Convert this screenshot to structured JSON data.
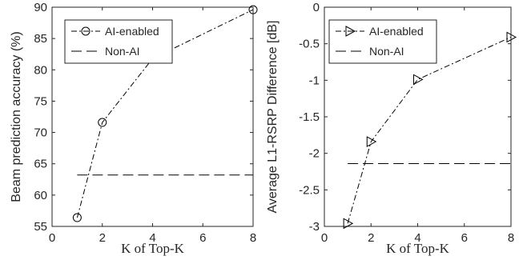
{
  "chart_data": [
    {
      "type": "line",
      "xlabel": "K of Top-K",
      "ylabel": "Beam prediction accuracy (%)",
      "xlim": [
        0,
        8
      ],
      "ylim": [
        55,
        90
      ],
      "xticks": [
        0,
        2,
        4,
        6,
        8
      ],
      "yticks": [
        55,
        60,
        65,
        70,
        75,
        80,
        85,
        90
      ],
      "xtick_labels": [
        "0",
        "2",
        "4",
        "6",
        "8"
      ],
      "ytick_labels": [
        "55",
        "60",
        "65",
        "70",
        "75",
        "80",
        "85",
        "90"
      ],
      "legend_position": "top-left",
      "series": [
        {
          "name": "AI-enabled",
          "style": "dash-dot",
          "marker": "circle",
          "x": [
            1,
            2,
            4,
            8
          ],
          "y": [
            56.4,
            71.6,
            81.8,
            89.6
          ]
        },
        {
          "name": "Non-AI",
          "style": "dashed",
          "marker": "none",
          "x": [
            1,
            8
          ],
          "y": [
            63.2,
            63.2
          ]
        }
      ]
    },
    {
      "type": "line",
      "xlabel": "K of Top-K",
      "ylabel": "Average L1-RSRP Difference [dB]",
      "xlim": [
        0,
        8
      ],
      "ylim": [
        -3,
        0
      ],
      "xticks": [
        0,
        2,
        4,
        6,
        8
      ],
      "yticks": [
        -3,
        -2.5,
        -2,
        -1.5,
        -1,
        -0.5,
        0
      ],
      "xtick_labels": [
        "0",
        "2",
        "4",
        "6",
        "8"
      ],
      "ytick_labels": [
        "-3",
        "-2.5",
        "-2",
        "-1.5",
        "-1",
        "-0.5",
        "0"
      ],
      "legend_position": "top-left",
      "series": [
        {
          "name": "AI-enabled",
          "style": "dash-dot",
          "marker": "triangle-right",
          "x": [
            1,
            2,
            4,
            8
          ],
          "y": [
            -2.96,
            -1.84,
            -0.99,
            -0.41
          ]
        },
        {
          "name": "Non-AI",
          "style": "dashed",
          "marker": "none",
          "x": [
            1,
            8
          ],
          "y": [
            -2.14,
            -2.14
          ]
        }
      ]
    }
  ]
}
